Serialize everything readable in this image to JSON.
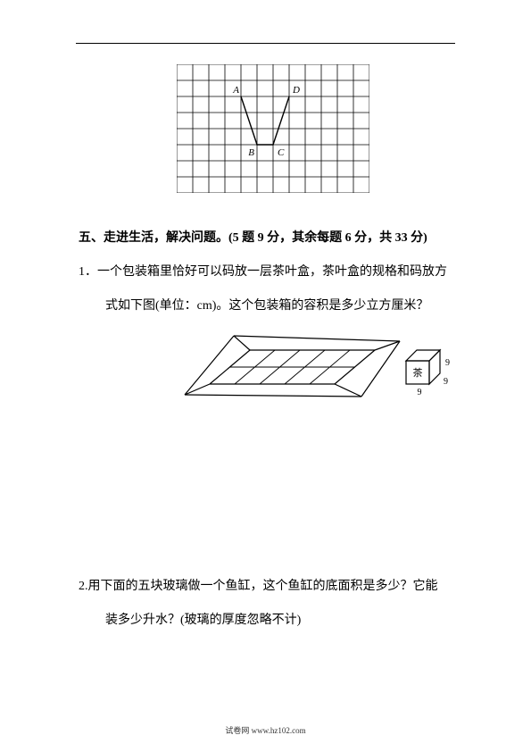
{
  "section": {
    "heading": "五、走进生活，解决问题。(5 题 9 分，其余每题 6 分，共 33 分)"
  },
  "q1": {
    "line1": "1．一个包装箱里恰好可以码放一层茶叶盒，茶叶盒的规格和码放方",
    "line2": "式如下图(单位：cm)。这个包装箱的容积是多少立方厘米？"
  },
  "q2": {
    "line1": "2.用下面的五块玻璃做一个鱼缸，这个鱼缸的底面积是多少？它能",
    "line2": "装多少升水？(玻璃的厚度忽略不计)"
  },
  "footer": {
    "site_label": "试卷网",
    "url": "www.hz102.com"
  },
  "grid_diagram": {
    "cols": 12,
    "rows": 8,
    "cell": 18,
    "stroke": "#000000",
    "stroke_width": 0.8,
    "points": {
      "A": {
        "col": 4,
        "row": 2,
        "label": "A"
      },
      "B": {
        "col": 5,
        "row": 5,
        "label": "B"
      },
      "C": {
        "col": 6,
        "row": 5,
        "label": "C"
      },
      "D": {
        "col": 7,
        "row": 2,
        "label": "D"
      }
    },
    "polyline_color": "#000000",
    "polyline_width": 1.4,
    "label_fontsize": 11
  },
  "box_diagram": {
    "tea_label": "茶",
    "dim_label": "9",
    "stroke": "#000000",
    "stroke_width": 1.2,
    "label_fontsize": 10
  }
}
